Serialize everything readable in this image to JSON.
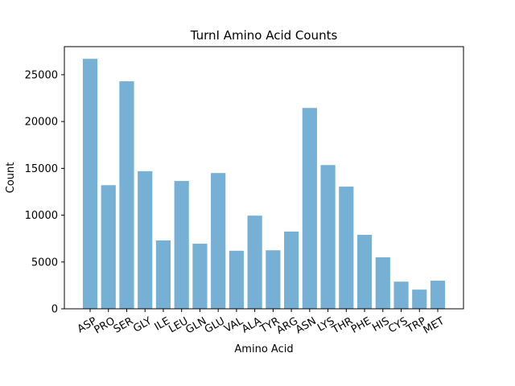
{
  "chart_data": {
    "type": "bar",
    "title": "TurnI Amino Acid Counts",
    "xlabel": "Amino Acid",
    "ylabel": "Count",
    "categories": [
      "ASP",
      "PRO",
      "SER",
      "GLY",
      "ILE",
      "LEU",
      "GLN",
      "GLU",
      "VAL",
      "ALA",
      "TYR",
      "ARG",
      "ASN",
      "LYS",
      "THR",
      "PHE",
      "HIS",
      "CYS",
      "TRP",
      "MET"
    ],
    "values": [
      26700,
      13200,
      24300,
      14700,
      7300,
      13650,
      6950,
      14500,
      6200,
      9950,
      6250,
      8250,
      21450,
      15350,
      13050,
      7900,
      5500,
      2900,
      2050,
      3000
    ],
    "ylim": [
      0,
      28000
    ],
    "yticks": [
      0,
      5000,
      10000,
      15000,
      20000,
      25000
    ],
    "bar_color": "#77b0d5",
    "grid": false,
    "legend": "none"
  }
}
